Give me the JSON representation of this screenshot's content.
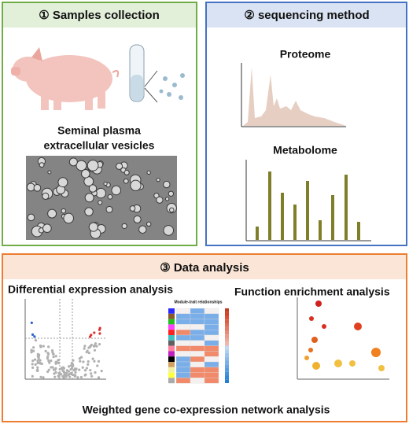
{
  "panels": [
    {
      "title": "① Samples collection",
      "caption": [
        "Seminal plasma",
        "extracellular vesicles"
      ]
    },
    {
      "title": "② sequencing method",
      "labels": [
        "Proteome",
        "Metabolome"
      ]
    },
    {
      "title": "③ Data analysis",
      "labels": [
        "Differential expression analysis",
        "Function enrichment analysis",
        "Module-trait relationships",
        "Weighted gene co-expression network analysis"
      ]
    }
  ]
}
